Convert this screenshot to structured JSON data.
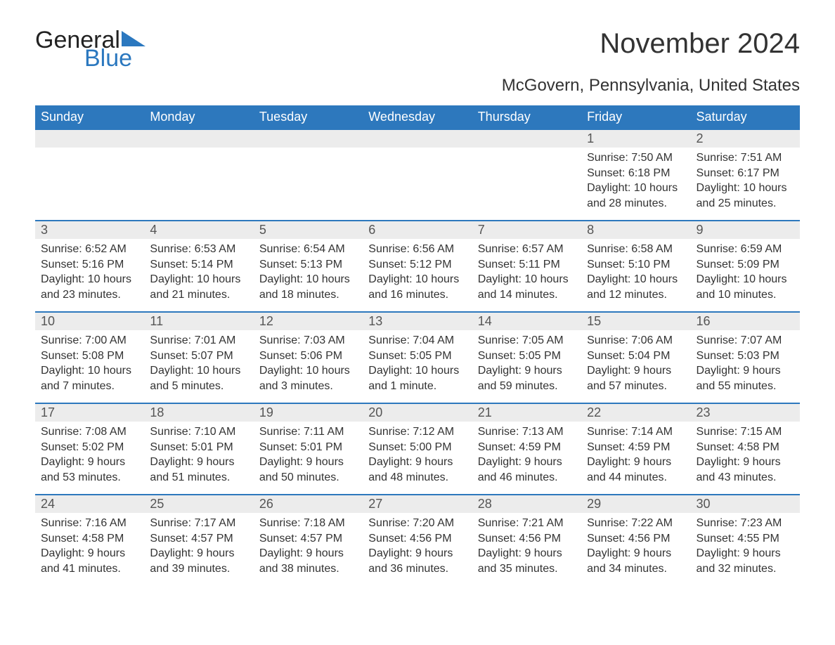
{
  "logo": {
    "part1": "General",
    "part2": "Blue"
  },
  "title": "November 2024",
  "subtitle": "McGovern, Pennsylvania, United States",
  "colors": {
    "header_bg": "#2d78bd",
    "header_text": "#ffffff",
    "daynum_bg": "#ececec",
    "row_border": "#2d78bd",
    "logo_blue": "#2b78bf",
    "text": "#333333"
  },
  "weekdays": [
    "Sunday",
    "Monday",
    "Tuesday",
    "Wednesday",
    "Thursday",
    "Friday",
    "Saturday"
  ],
  "weeks": [
    [
      null,
      null,
      null,
      null,
      null,
      {
        "n": "1",
        "sunrise": "7:50 AM",
        "sunset": "6:18 PM",
        "dl1": "Daylight: 10 hours",
        "dl2": "and 28 minutes."
      },
      {
        "n": "2",
        "sunrise": "7:51 AM",
        "sunset": "6:17 PM",
        "dl1": "Daylight: 10 hours",
        "dl2": "and 25 minutes."
      }
    ],
    [
      {
        "n": "3",
        "sunrise": "6:52 AM",
        "sunset": "5:16 PM",
        "dl1": "Daylight: 10 hours",
        "dl2": "and 23 minutes."
      },
      {
        "n": "4",
        "sunrise": "6:53 AM",
        "sunset": "5:14 PM",
        "dl1": "Daylight: 10 hours",
        "dl2": "and 21 minutes."
      },
      {
        "n": "5",
        "sunrise": "6:54 AM",
        "sunset": "5:13 PM",
        "dl1": "Daylight: 10 hours",
        "dl2": "and 18 minutes."
      },
      {
        "n": "6",
        "sunrise": "6:56 AM",
        "sunset": "5:12 PM",
        "dl1": "Daylight: 10 hours",
        "dl2": "and 16 minutes."
      },
      {
        "n": "7",
        "sunrise": "6:57 AM",
        "sunset": "5:11 PM",
        "dl1": "Daylight: 10 hours",
        "dl2": "and 14 minutes."
      },
      {
        "n": "8",
        "sunrise": "6:58 AM",
        "sunset": "5:10 PM",
        "dl1": "Daylight: 10 hours",
        "dl2": "and 12 minutes."
      },
      {
        "n": "9",
        "sunrise": "6:59 AM",
        "sunset": "5:09 PM",
        "dl1": "Daylight: 10 hours",
        "dl2": "and 10 minutes."
      }
    ],
    [
      {
        "n": "10",
        "sunrise": "7:00 AM",
        "sunset": "5:08 PM",
        "dl1": "Daylight: 10 hours",
        "dl2": "and 7 minutes."
      },
      {
        "n": "11",
        "sunrise": "7:01 AM",
        "sunset": "5:07 PM",
        "dl1": "Daylight: 10 hours",
        "dl2": "and 5 minutes."
      },
      {
        "n": "12",
        "sunrise": "7:03 AM",
        "sunset": "5:06 PM",
        "dl1": "Daylight: 10 hours",
        "dl2": "and 3 minutes."
      },
      {
        "n": "13",
        "sunrise": "7:04 AM",
        "sunset": "5:05 PM",
        "dl1": "Daylight: 10 hours",
        "dl2": "and 1 minute."
      },
      {
        "n": "14",
        "sunrise": "7:05 AM",
        "sunset": "5:05 PM",
        "dl1": "Daylight: 9 hours",
        "dl2": "and 59 minutes."
      },
      {
        "n": "15",
        "sunrise": "7:06 AM",
        "sunset": "5:04 PM",
        "dl1": "Daylight: 9 hours",
        "dl2": "and 57 minutes."
      },
      {
        "n": "16",
        "sunrise": "7:07 AM",
        "sunset": "5:03 PM",
        "dl1": "Daylight: 9 hours",
        "dl2": "and 55 minutes."
      }
    ],
    [
      {
        "n": "17",
        "sunrise": "7:08 AM",
        "sunset": "5:02 PM",
        "dl1": "Daylight: 9 hours",
        "dl2": "and 53 minutes."
      },
      {
        "n": "18",
        "sunrise": "7:10 AM",
        "sunset": "5:01 PM",
        "dl1": "Daylight: 9 hours",
        "dl2": "and 51 minutes."
      },
      {
        "n": "19",
        "sunrise": "7:11 AM",
        "sunset": "5:01 PM",
        "dl1": "Daylight: 9 hours",
        "dl2": "and 50 minutes."
      },
      {
        "n": "20",
        "sunrise": "7:12 AM",
        "sunset": "5:00 PM",
        "dl1": "Daylight: 9 hours",
        "dl2": "and 48 minutes."
      },
      {
        "n": "21",
        "sunrise": "7:13 AM",
        "sunset": "4:59 PM",
        "dl1": "Daylight: 9 hours",
        "dl2": "and 46 minutes."
      },
      {
        "n": "22",
        "sunrise": "7:14 AM",
        "sunset": "4:59 PM",
        "dl1": "Daylight: 9 hours",
        "dl2": "and 44 minutes."
      },
      {
        "n": "23",
        "sunrise": "7:15 AM",
        "sunset": "4:58 PM",
        "dl1": "Daylight: 9 hours",
        "dl2": "and 43 minutes."
      }
    ],
    [
      {
        "n": "24",
        "sunrise": "7:16 AM",
        "sunset": "4:58 PM",
        "dl1": "Daylight: 9 hours",
        "dl2": "and 41 minutes."
      },
      {
        "n": "25",
        "sunrise": "7:17 AM",
        "sunset": "4:57 PM",
        "dl1": "Daylight: 9 hours",
        "dl2": "and 39 minutes."
      },
      {
        "n": "26",
        "sunrise": "7:18 AM",
        "sunset": "4:57 PM",
        "dl1": "Daylight: 9 hours",
        "dl2": "and 38 minutes."
      },
      {
        "n": "27",
        "sunrise": "7:20 AM",
        "sunset": "4:56 PM",
        "dl1": "Daylight: 9 hours",
        "dl2": "and 36 minutes."
      },
      {
        "n": "28",
        "sunrise": "7:21 AM",
        "sunset": "4:56 PM",
        "dl1": "Daylight: 9 hours",
        "dl2": "and 35 minutes."
      },
      {
        "n": "29",
        "sunrise": "7:22 AM",
        "sunset": "4:56 PM",
        "dl1": "Daylight: 9 hours",
        "dl2": "and 34 minutes."
      },
      {
        "n": "30",
        "sunrise": "7:23 AM",
        "sunset": "4:55 PM",
        "dl1": "Daylight: 9 hours",
        "dl2": "and 32 minutes."
      }
    ]
  ],
  "labels": {
    "sunrise": "Sunrise: ",
    "sunset": "Sunset: "
  }
}
